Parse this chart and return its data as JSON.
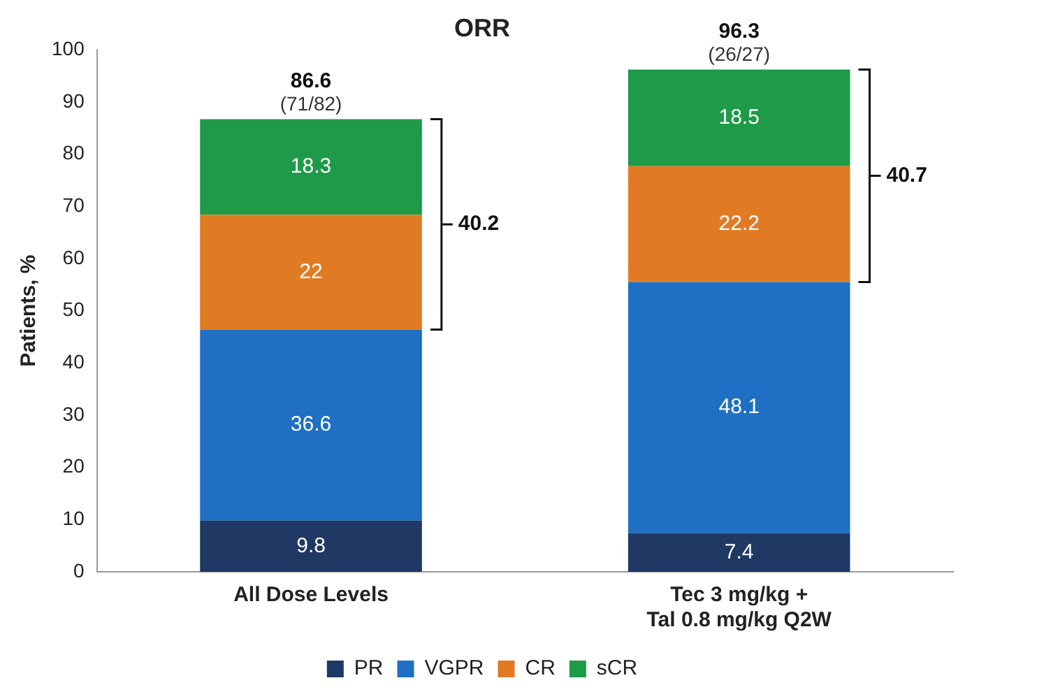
{
  "chart_data": {
    "type": "bar",
    "title": "ORR",
    "ylabel": "Patients, %",
    "stacked": true,
    "categories": [
      "All Dose Levels",
      "Tec 3 mg/kg +\nTal 0.8 mg/kg Q2W"
    ],
    "series": [
      {
        "name": "PR",
        "color": "#1f3864",
        "values": [
          9.8,
          7.4
        ]
      },
      {
        "name": "VGPR",
        "color": "#1f6fc4",
        "values": [
          36.6,
          48.1
        ]
      },
      {
        "name": "CR",
        "color": "#e07b24",
        "values": [
          22,
          22.2
        ]
      },
      {
        "name": "sCR",
        "color": "#1e9a48",
        "values": [
          18.3,
          18.5
        ]
      }
    ],
    "data_labels": true,
    "totals": [
      "86.6\n(71/82)",
      "96.3\n(26/27)"
    ],
    "annotations": [
      "40.2",
      "40.7"
    ],
    "ylim": [
      0,
      100
    ],
    "yticks": [
      0,
      10,
      20,
      30,
      40,
      50,
      60,
      70,
      80,
      90,
      100
    ],
    "grid": false,
    "legend": "bottom"
  }
}
